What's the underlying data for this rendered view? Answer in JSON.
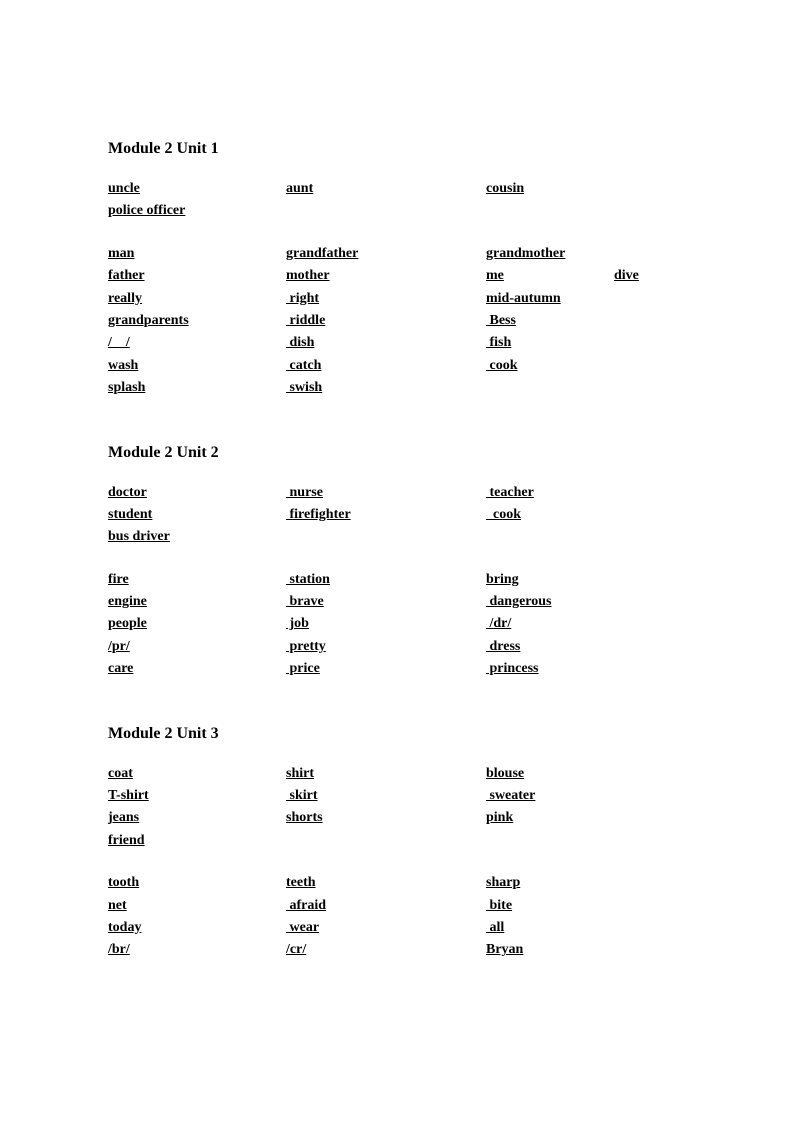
{
  "typography": {
    "font_family": "Times New Roman",
    "title_fontsize": 16,
    "word_fontsize": 14,
    "color": "#000000",
    "background": "#ffffff",
    "font_weight": "bold",
    "text_decoration": "underline"
  },
  "modules": [
    {
      "title": "Module 2 Unit 1",
      "blocks": [
        [
          [
            "uncle",
            "aunt",
            "cousin",
            ""
          ],
          [
            "police officer",
            "",
            "",
            ""
          ]
        ],
        [
          [
            "man",
            "grandfather",
            "grandmother",
            ""
          ],
          [
            "father",
            "mother",
            "me",
            "dive"
          ],
          [
            "really",
            " right",
            "mid-autumn",
            ""
          ],
          [
            "grandparents",
            " riddle",
            " Bess",
            ""
          ],
          [
            "/    /",
            " dish",
            " fish",
            ""
          ],
          [
            "wash",
            " catch",
            " cook",
            ""
          ],
          [
            "splash",
            " swish",
            "",
            ""
          ]
        ]
      ]
    },
    {
      "title": "Module 2 Unit 2",
      "blocks": [
        [
          [
            "doctor",
            " nurse",
            " teacher",
            ""
          ],
          [
            "student",
            " firefighter",
            "  cook",
            ""
          ],
          [
            "bus driver",
            "",
            "",
            ""
          ]
        ],
        [
          [
            "fire",
            " station",
            "bring",
            ""
          ],
          [
            "engine",
            " brave",
            " dangerous",
            ""
          ],
          [
            "people",
            " job",
            " /dr/",
            ""
          ],
          [
            "/pr/",
            " pretty",
            " dress",
            ""
          ],
          [
            "care",
            " price",
            " princess",
            ""
          ]
        ]
      ]
    },
    {
      "title": "Module 2 Unit 3",
      "blocks": [
        [
          [
            "coat",
            "shirt",
            "blouse",
            ""
          ],
          [
            "T-shirt",
            " skirt",
            " sweater",
            ""
          ],
          [
            "jeans",
            "shorts",
            "pink",
            ""
          ],
          [
            "friend",
            "",
            "",
            ""
          ]
        ],
        [
          [
            "tooth",
            "teeth",
            "sharp",
            ""
          ],
          [
            "net",
            " afraid",
            " bite",
            ""
          ],
          [
            "today",
            " wear",
            " all",
            ""
          ],
          [
            "/br/",
            "/cr/",
            "Bryan",
            ""
          ]
        ]
      ]
    }
  ]
}
